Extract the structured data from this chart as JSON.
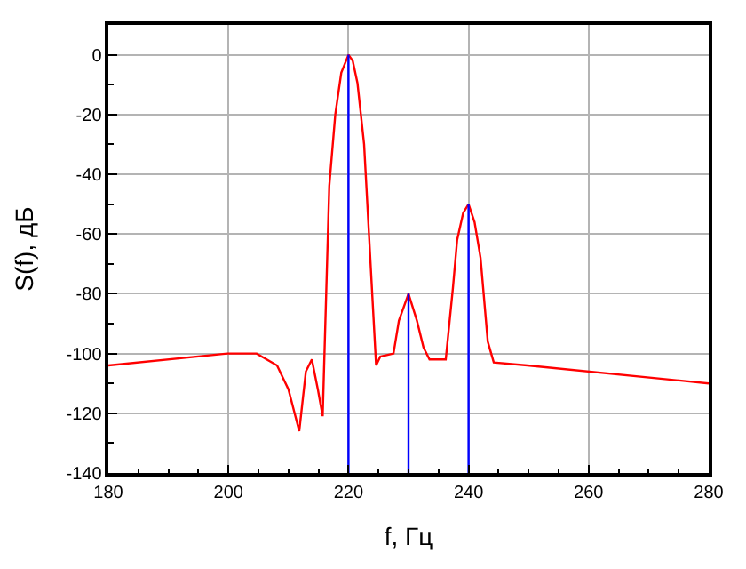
{
  "chart_data": {
    "type": "line",
    "xlabel": "f, Гц",
    "ylabel": "S(f), дБ",
    "xlim": [
      180,
      280
    ],
    "xticks": [
      180,
      200,
      220,
      240,
      260,
      280
    ],
    "ylim": [
      -140,
      10
    ],
    "yticks": [
      -140,
      -120,
      -100,
      -80,
      -60,
      -40,
      -20,
      0
    ],
    "grid": true,
    "series": [
      {
        "type": "line",
        "color": "#ff0000",
        "marker": "none",
        "x": [
          180,
          199.9,
          204.7,
          208.1,
          210,
          211.8,
          212.9,
          213.9,
          214.9,
          215.7,
          216.8,
          217.8,
          218.8,
          220,
          220.7,
          221.5,
          222.6,
          224.6,
          225.3,
          227.5,
          228.4,
          230,
          231.4,
          232.5,
          233.5,
          236.2,
          237.4,
          238.1,
          239.1,
          240,
          241,
          242,
          243.2,
          244.2,
          249.8,
          280
        ],
        "values": [
          -104,
          -100,
          -100,
          -104,
          -112,
          -126,
          -106,
          -102,
          -112,
          -121,
          -44,
          -20,
          -6,
          0,
          -2,
          -9.5,
          -30,
          -104,
          -101,
          -100,
          -89,
          -80,
          -89,
          -98,
          -102,
          -102,
          -78,
          -62,
          -53,
          -50,
          -56,
          -68,
          -96,
          -103,
          -104,
          -110
        ]
      },
      {
        "type": "line",
        "color": "#0000ff",
        "marker": "none",
        "x": [
          220,
          220
        ],
        "values": [
          -140,
          0
        ]
      },
      {
        "type": "line",
        "color": "#0000ff",
        "marker": "none",
        "x": [
          230,
          230
        ],
        "values": [
          -140,
          -80
        ]
      },
      {
        "type": "line",
        "color": "#0000ff",
        "marker": "none",
        "x": [
          240,
          240
        ],
        "values": [
          -140,
          -50
        ]
      }
    ]
  }
}
